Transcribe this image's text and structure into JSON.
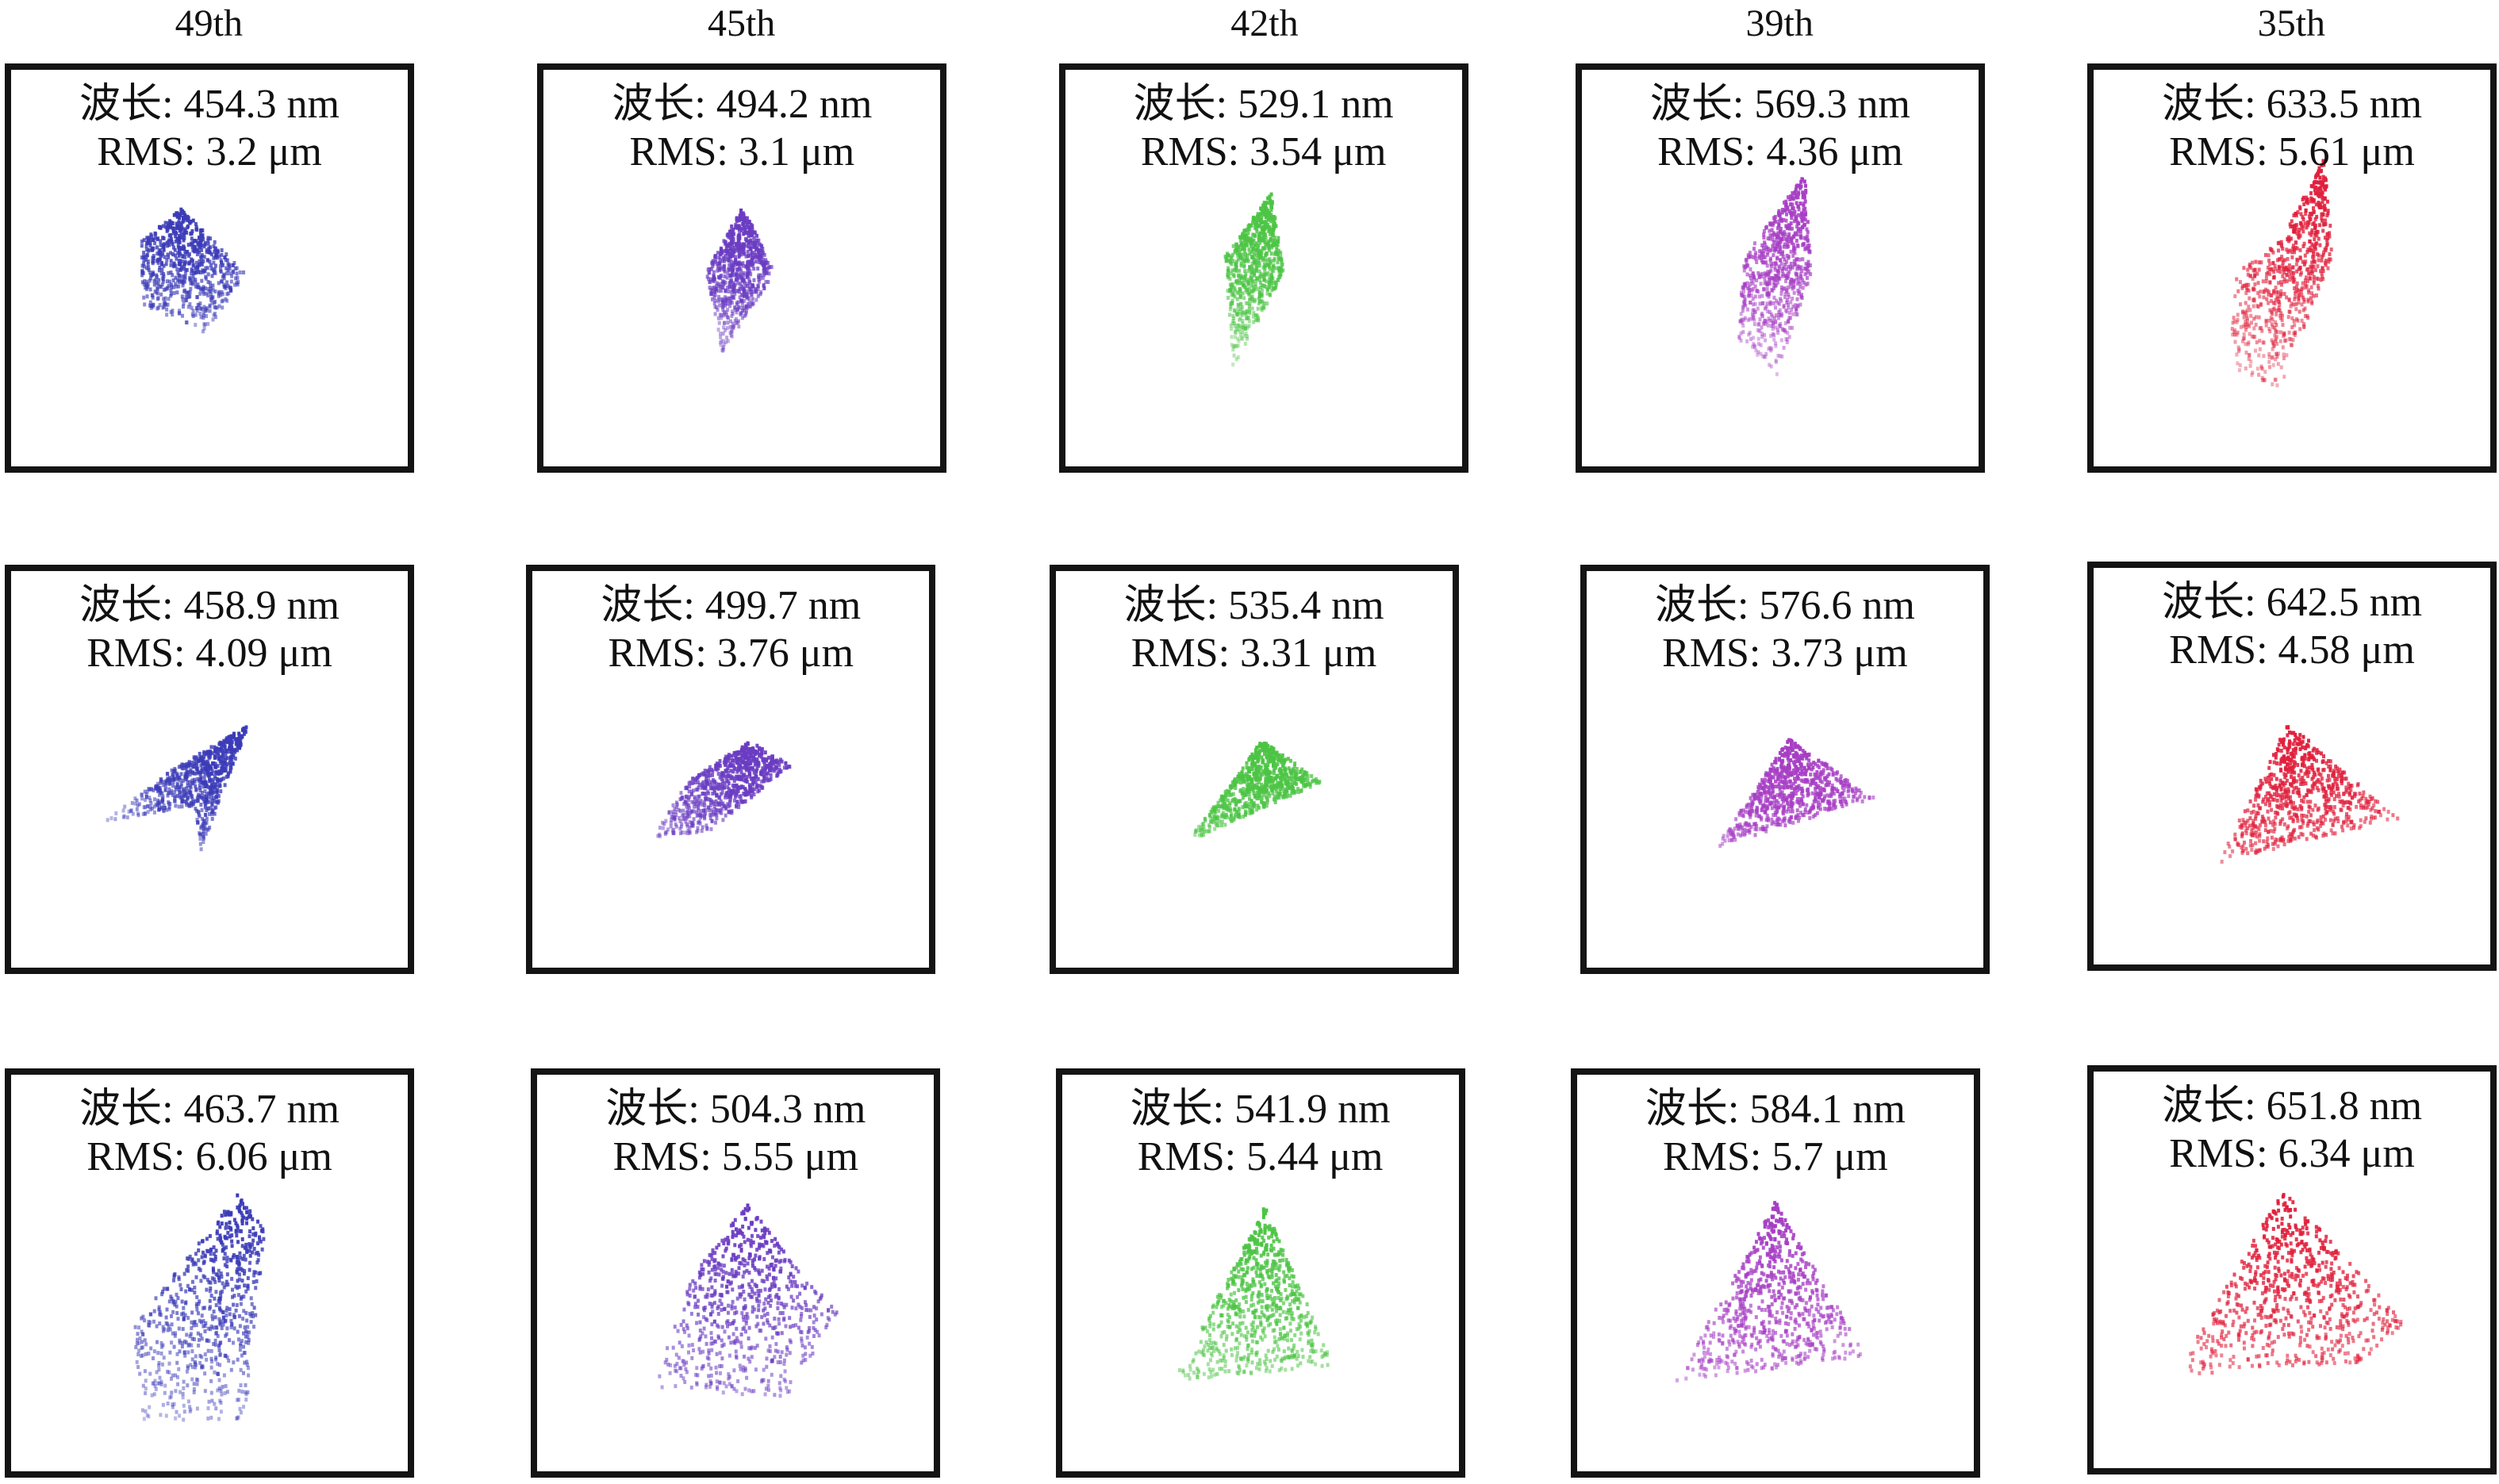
{
  "columns": [
    {
      "header": "49th",
      "color": "#3b3bb8"
    },
    {
      "header": "45th",
      "color": "#6a3cc2"
    },
    {
      "header": "42th",
      "color": "#4cc444"
    },
    {
      "header": "39th",
      "color": "#a63ec4"
    },
    {
      "header": "35th",
      "color": "#e0203c"
    }
  ],
  "rows": [
    [
      {
        "wavelength": "波长: 454.3 nm",
        "rms": "RMS: 3.2 μm"
      },
      {
        "wavelength": "波长: 494.2 nm",
        "rms": "RMS: 3.1 μm"
      },
      {
        "wavelength": "波长: 529.1 nm",
        "rms": "RMS: 3.54 μm"
      },
      {
        "wavelength": "波长: 569.3 nm",
        "rms": "RMS: 4.36 μm"
      },
      {
        "wavelength": "波长: 633.5 nm",
        "rms": "RMS: 5.61 μm"
      }
    ],
    [
      {
        "wavelength": "波长: 458.9 nm",
        "rms": "RMS: 4.09 μm"
      },
      {
        "wavelength": "波长: 499.7 nm",
        "rms": "RMS: 3.76 μm"
      },
      {
        "wavelength": "波长: 535.4 nm",
        "rms": "RMS: 3.31 μm"
      },
      {
        "wavelength": "波长: 576.6 nm",
        "rms": "RMS: 3.73 μm"
      },
      {
        "wavelength": "波长: 642.5 nm",
        "rms": "RMS: 4.58 μm"
      }
    ],
    [
      {
        "wavelength": "波长: 463.7 nm",
        "rms": "RMS: 6.06 μm"
      },
      {
        "wavelength": "波长: 504.3 nm",
        "rms": "RMS: 5.55 μm"
      },
      {
        "wavelength": "波长: 541.9 nm",
        "rms": "RMS: 5.44 μm"
      },
      {
        "wavelength": "波长: 584.1 nm",
        "rms": "RMS: 5.7 μm"
      },
      {
        "wavelength": "波长: 651.8 nm",
        "rms": "RMS: 6.34 μm"
      }
    ]
  ]
}
